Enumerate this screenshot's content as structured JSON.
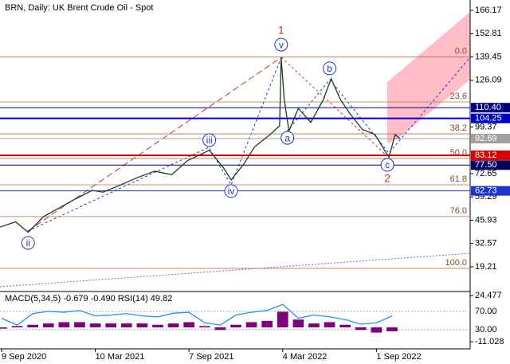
{
  "chart_data": {
    "type": "line",
    "title": "BRN, Daily:  UK Brent Crude Oil - Spot",
    "xlim": [
      -0.1,
      30
    ],
    "xticks": [
      {
        "value": 0,
        "label": "9 Sep 2020"
      },
      {
        "value": 6,
        "label": "10 Mar 2021"
      },
      {
        "value": 12,
        "label": "7 Sep 2021"
      },
      {
        "value": 18,
        "label": "4 Mar 2022"
      },
      {
        "value": 24,
        "label": "1 Sep 2022"
      }
    ],
    "ylim": [
      5.5,
      171.2
    ],
    "yticks": [
      166.17,
      152.81,
      139.45,
      126.09,
      99.37,
      72.65,
      59.29,
      45.93,
      32.57,
      19.21
    ],
    "series": [
      {
        "name": "BRN",
        "color": "#1e3a1e",
        "x": [
          -0.1,
          0.9,
          1.7,
          2.7,
          3.7,
          4.7,
          5.8,
          6.5,
          7.6,
          8.6,
          9.8,
          10.9,
          11.9,
          13.3,
          14.2,
          14.7,
          15.5,
          16.2,
          17.2,
          17.8,
          17.9,
          18.1,
          18.4,
          19.0,
          19.8,
          20.6,
          21.1,
          21.7,
          22.3,
          23.1,
          23.9,
          24.8,
          25.2,
          25.5
        ],
        "values": [
          42,
          45,
          39,
          48,
          53,
          58,
          63,
          62,
          66,
          70,
          74,
          72,
          80,
          86,
          76,
          69,
          78,
          88,
          95,
          100,
          139,
          115,
          97,
          110,
          102,
          115,
          127,
          115,
          107,
          98,
          95,
          82,
          95,
          92.69
        ]
      }
    ],
    "levels": [
      {
        "price": 110.4,
        "label": "110.40",
        "color": "#000080",
        "width": 1
      },
      {
        "price": 104.25,
        "color": "#0000cc",
        "width": 2
      },
      {
        "price": 92.69,
        "color": "#a0a0a0",
        "width": 1
      },
      {
        "price": 83.12,
        "color": "#dd0000",
        "width": 2
      },
      {
        "price": 77.5,
        "label": "77.50",
        "color": "#000060",
        "width": 1
      },
      {
        "price": 62.73,
        "color": "#2233cc",
        "width": 1
      }
    ],
    "fib": [
      {
        "label": "0.0",
        "price": 139.45
      },
      {
        "label": "23.6",
        "price": 113.7
      },
      {
        "label": "38.2",
        "price": 95.4
      },
      {
        "label": "50.0",
        "price": 81.3
      },
      {
        "label": "61.8",
        "price": 66.2
      },
      {
        "label": "76.0",
        "price": 48
      },
      {
        "label": "100.0",
        "price": 18.3
      }
    ],
    "waves": [
      {
        "text": "1",
        "x": 17.9,
        "price": 154.8,
        "color": "#c0392b",
        "circled": false
      },
      {
        "text": "v",
        "x": 17.9,
        "price": 146.5,
        "color": "#2233cc",
        "circled": true
      },
      {
        "text": "iii",
        "x": 13.3,
        "price": 91.8,
        "color": "#2233cc",
        "circled": true
      },
      {
        "text": "ii",
        "x": 1.7,
        "price": 32.9,
        "color": "#2233cc",
        "circled": true
      },
      {
        "text": "iv",
        "x": 14.7,
        "price": 62.6,
        "color": "#2233cc",
        "circled": true
      },
      {
        "text": "a",
        "x": 18.3,
        "price": 93.1,
        "color": "#2233cc",
        "circled": true
      },
      {
        "text": "b",
        "x": 21.0,
        "price": 132.9,
        "color": "#2233cc",
        "circled": true
      },
      {
        "text": "c",
        "x": 24.7,
        "price": 77.6,
        "color": "#2233cc",
        "circled": true
      },
      {
        "text": "2",
        "x": 24.7,
        "price": 69.9,
        "color": "#c0392b",
        "circled": false
      }
    ],
    "indicator": {
      "label": "MACD(5,34,5) -0.679 -0.490 RSI(14) 49.82",
      "x": [
        0,
        1,
        2,
        3,
        4,
        5,
        6,
        7,
        8,
        9,
        10,
        11,
        12,
        13,
        14,
        15,
        16,
        17,
        18,
        19,
        20,
        21,
        22,
        23,
        24,
        25
      ],
      "macd": [
        -1,
        1,
        2,
        3,
        4,
        4,
        3,
        3,
        3,
        3,
        2,
        3,
        4,
        1,
        -2,
        2,
        4,
        5,
        12,
        6,
        3,
        4,
        2,
        -2,
        -4,
        -3
      ],
      "macd_color": "#800080",
      "ylim": [
        -16.5,
        26.9
      ],
      "yticks": [
        24.477,
        -11.028
      ],
      "rsi": [
        55,
        40,
        65,
        70,
        68,
        72,
        60,
        62,
        65,
        60,
        58,
        66,
        68,
        45,
        40,
        62,
        68,
        72,
        85,
        55,
        62,
        58,
        52,
        42,
        45,
        60
      ],
      "rsi_color": "#1e90ff",
      "rsi_ylim": [
        -12,
        111.6
      ],
      "rsi_ticks": [
        {
          "value": 70,
          "label": "70.00"
        },
        {
          "value": 30,
          "label": "30.00"
        }
      ]
    }
  }
}
